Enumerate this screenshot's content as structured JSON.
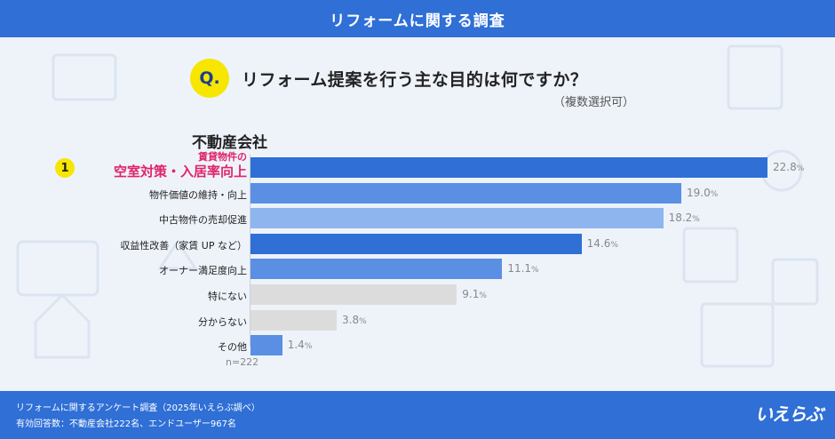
{
  "header": {
    "title": "リフォームに関する調査"
  },
  "question": {
    "badge": "Q.",
    "text": "リフォーム提案を行う主な目的は何ですか？",
    "note": "（複数選択可）"
  },
  "subtitle": "不動産会社",
  "rank_badge": "1",
  "sample_note": "n=222",
  "footer": {
    "line1": "リフォームに関するアンケート調査（2025年いえらぶ調べ）",
    "line2": "有効回答数：不動産会社222名、エンドユーザー967名"
  },
  "logo": "いえらぶ",
  "colors": {
    "header": "#2f6fd6",
    "highlight_text": "#e0236a",
    "badge_yellow": "#f6e600",
    "bar_dark": "#2f6fd6",
    "bar_mid": "#5b8fe3",
    "bar_light": "#8fb5ef",
    "bar_gray": "#dcdcdc",
    "value_text": "#888888"
  },
  "chart_data": {
    "type": "bar",
    "orientation": "horizontal",
    "categories": [
      "賃貸物件の空室対策・入居率向上",
      "物件価値の維持・向上",
      "中古物件の売却促進",
      "収益性改善（家賃 UP など）",
      "オーナー満足度向上",
      "特にない",
      "分からない",
      "その他"
    ],
    "top_category_lines": [
      "賃貸物件の",
      "空室対策・入居率向上"
    ],
    "values": [
      22.8,
      19.0,
      18.2,
      14.6,
      11.1,
      9.1,
      3.8,
      1.4
    ],
    "value_labels": [
      "22.8",
      "19.0",
      "18.2",
      "14.6",
      "11.1",
      "9.1",
      "3.8",
      "1.4"
    ],
    "unit": "%",
    "bar_colors": [
      "#2f6fd6",
      "#5b8fe3",
      "#8fb5ef",
      "#2f6fd6",
      "#5b8fe3",
      "#dcdcdc",
      "#dcdcdc",
      "#5b8fe3"
    ],
    "xlim": [
      0,
      22.8
    ],
    "grid": false,
    "legend": "none"
  }
}
